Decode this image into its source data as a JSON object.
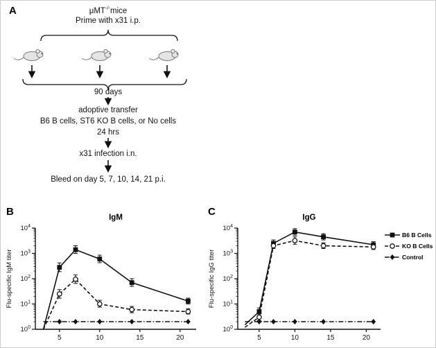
{
  "figure": {
    "panelA": {
      "label": "A",
      "mu_line": {
        "pre": "μMT",
        "sup": "-/-",
        "post": "mice"
      },
      "prime": "Prime with x31 i.p.",
      "days": "90 days",
      "adoptive": "adoptive transfer",
      "cells": "B6 B cells, ST6 KO B cells, or No cells",
      "hours": "24 hrs",
      "infection": "x31 infection i.n.",
      "bleed": "Bleed on day 5, 7, 10, 14, 21 p.i."
    },
    "panelB": {
      "label": "B"
    },
    "panelC": {
      "label": "C"
    },
    "legend": {
      "items": [
        "B6 B Cells",
        "KO B Cells",
        "Control"
      ]
    }
  },
  "chart_data": [
    {
      "type": "line",
      "title": "IgM",
      "xlabel": "",
      "ylabel": "Flu-specific IgM titer",
      "yscale": "log",
      "ylim_exp": [
        0,
        4
      ],
      "xlim": [
        2,
        22
      ],
      "xticks": [
        5,
        10,
        15,
        20
      ],
      "x": [
        3,
        5,
        7,
        10,
        14,
        21
      ],
      "series": [
        {
          "name": "B6 B Cells",
          "marker": "square-filled",
          "line": "solid",
          "marker_from": 1,
          "values": [
            1,
            280,
            1400,
            600,
            70,
            13
          ],
          "err_hi": [
            0,
            140,
            600,
            250,
            30,
            4
          ],
          "err_lo": [
            0,
            90,
            400,
            170,
            20,
            3
          ]
        },
        {
          "name": "KO B Cells",
          "marker": "circle-open",
          "line": "dashed",
          "marker_from": 1,
          "values": [
            1,
            25,
            95,
            10,
            6,
            5
          ],
          "err_hi": [
            0,
            12,
            45,
            4,
            2,
            1.5
          ],
          "err_lo": [
            0,
            8,
            30,
            2.5,
            1.5,
            1
          ]
        },
        {
          "name": "Control",
          "marker": "diamond-filled",
          "line": "dashdot",
          "marker_from": 1,
          "values": [
            2,
            2,
            2,
            2,
            2,
            2
          ],
          "err_hi": [
            0,
            0,
            0,
            0,
            0,
            0
          ],
          "err_lo": [
            0,
            0,
            0,
            0,
            0,
            0
          ]
        }
      ]
    },
    {
      "type": "line",
      "title": "IgG",
      "xlabel": "",
      "ylabel": "Flu-specific IgG titer",
      "yscale": "log",
      "ylim_exp": [
        0,
        4
      ],
      "xlim": [
        2,
        22
      ],
      "xticks": [
        5,
        10,
        15,
        20
      ],
      "x": [
        3,
        5,
        7,
        10,
        14,
        21
      ],
      "series": [
        {
          "name": "B6 B Cells",
          "marker": "square-filled",
          "line": "solid",
          "marker_from": 1,
          "values": [
            1.5,
            5,
            2500,
            7000,
            4500,
            2200
          ],
          "err_hi": [
            0,
            2,
            900,
            2500,
            1500,
            700
          ],
          "err_lo": [
            0,
            1.5,
            650,
            1800,
            1100,
            500
          ]
        },
        {
          "name": "KO B Cells",
          "marker": "circle-open",
          "line": "dashed",
          "marker_from": 1,
          "values": [
            1.2,
            3,
            2000,
            3200,
            2000,
            1800
          ],
          "err_hi": [
            0,
            1,
            600,
            1300,
            600,
            500
          ],
          "err_lo": [
            0,
            0.8,
            450,
            900,
            450,
            380
          ]
        },
        {
          "name": "Control",
          "marker": "diamond-filled",
          "line": "dashdot",
          "marker_from": 1,
          "values": [
            2,
            2,
            2,
            2,
            2,
            2
          ],
          "err_hi": [
            0,
            0,
            0,
            0,
            0,
            0
          ],
          "err_lo": [
            0,
            0,
            0,
            0,
            0,
            0
          ]
        }
      ]
    }
  ]
}
